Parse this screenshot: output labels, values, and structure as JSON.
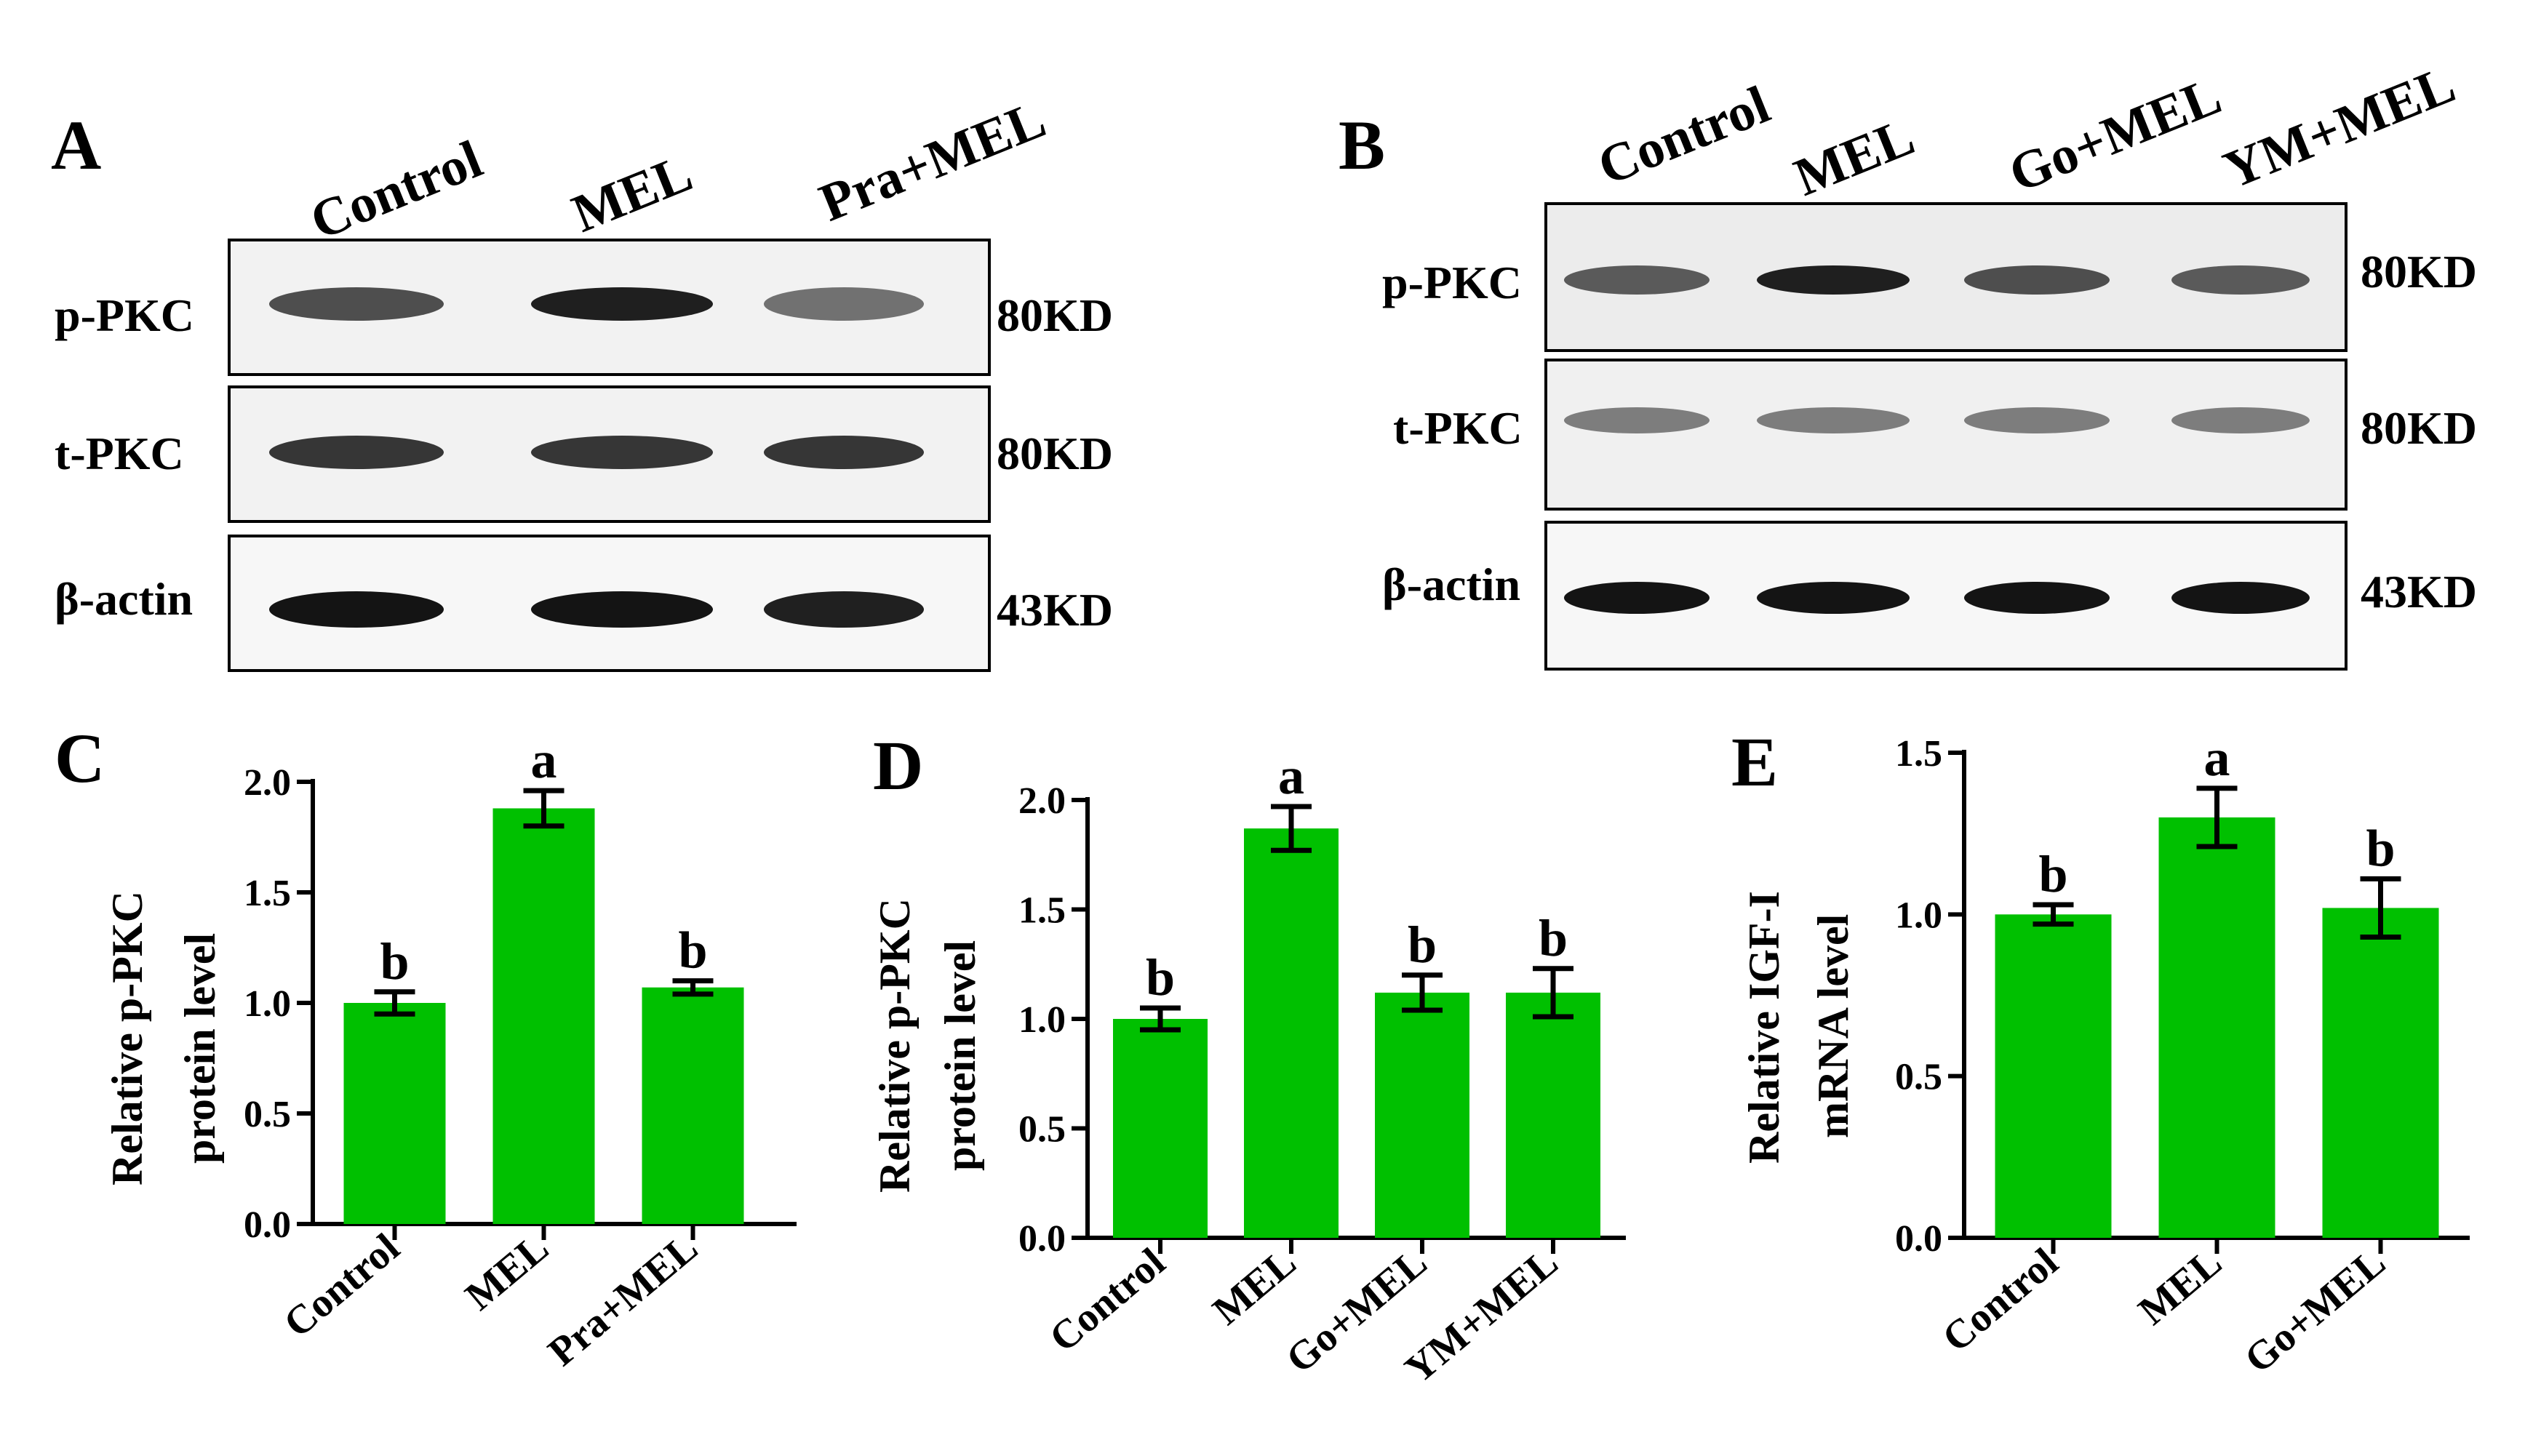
{
  "figure": {
    "panels": {
      "A": {
        "letter": "A",
        "lanes": [
          "Control",
          "MEL",
          "Pra+MEL"
        ],
        "blots": [
          {
            "label": "p-PKC",
            "size": "80KD",
            "intensity": [
              0.75,
              0.95,
              0.6
            ]
          },
          {
            "label": "t-PKC",
            "size": "80KD",
            "intensity": [
              0.85,
              0.85,
              0.85
            ]
          },
          {
            "label": "β-actin",
            "size": "43KD",
            "intensity": [
              1.0,
              1.0,
              0.95
            ]
          }
        ]
      },
      "B": {
        "letter": "B",
        "lanes": [
          "Control",
          "MEL",
          "Go+MEL",
          "YM+MEL"
        ],
        "blots": [
          {
            "label": "p-PKC",
            "size": "80KD",
            "intensity": [
              0.7,
              0.95,
              0.75,
              0.7
            ]
          },
          {
            "label": "t-PKC",
            "size": "80KD",
            "intensity": [
              0.55,
              0.55,
              0.55,
              0.55
            ]
          },
          {
            "label": "β-actin",
            "size": "43KD",
            "intensity": [
              1.0,
              1.0,
              1.0,
              1.0
            ]
          }
        ]
      }
    },
    "colors": {
      "bar": "#00c000",
      "ink": "#000000"
    }
  },
  "chart_data": [
    {
      "panel": "C",
      "type": "bar",
      "categories": [
        "Control",
        "MEL",
        "Pra+MEL"
      ],
      "values": [
        1.0,
        1.88,
        1.07
      ],
      "errors": [
        0.05,
        0.08,
        0.03
      ],
      "annotations": [
        "b",
        "a",
        "b"
      ],
      "ylabel": [
        "Relative p-PKC",
        "protein  level"
      ],
      "ylim": [
        0,
        2.0
      ],
      "yticks": [
        "0.0",
        "0.5",
        "1.0",
        "1.5",
        "2.0"
      ]
    },
    {
      "panel": "D",
      "type": "bar",
      "categories": [
        "Control",
        "MEL",
        "Go+MEL",
        "YM+MEL"
      ],
      "values": [
        1.0,
        1.87,
        1.12,
        1.12
      ],
      "errors": [
        0.05,
        0.1,
        0.08,
        0.11
      ],
      "annotations": [
        "b",
        "a",
        "b",
        "b"
      ],
      "ylabel": [
        "Relative p-PKC",
        "protein  level"
      ],
      "ylim": [
        0,
        2.0
      ],
      "yticks": [
        "0.0",
        "0.5",
        "1.0",
        "1.5",
        "2.0"
      ]
    },
    {
      "panel": "E",
      "type": "bar",
      "categories": [
        "Control",
        "MEL",
        "Go+MEL"
      ],
      "values": [
        1.0,
        1.3,
        1.02
      ],
      "errors": [
        0.03,
        0.09,
        0.09
      ],
      "annotations": [
        "b",
        "a",
        "b"
      ],
      "ylabel": [
        "Relative IGF-I",
        "mRNA level"
      ],
      "ylim": [
        0,
        1.5
      ],
      "yticks": [
        "0.0",
        "0.5",
        "1.0",
        "1.5"
      ]
    }
  ]
}
